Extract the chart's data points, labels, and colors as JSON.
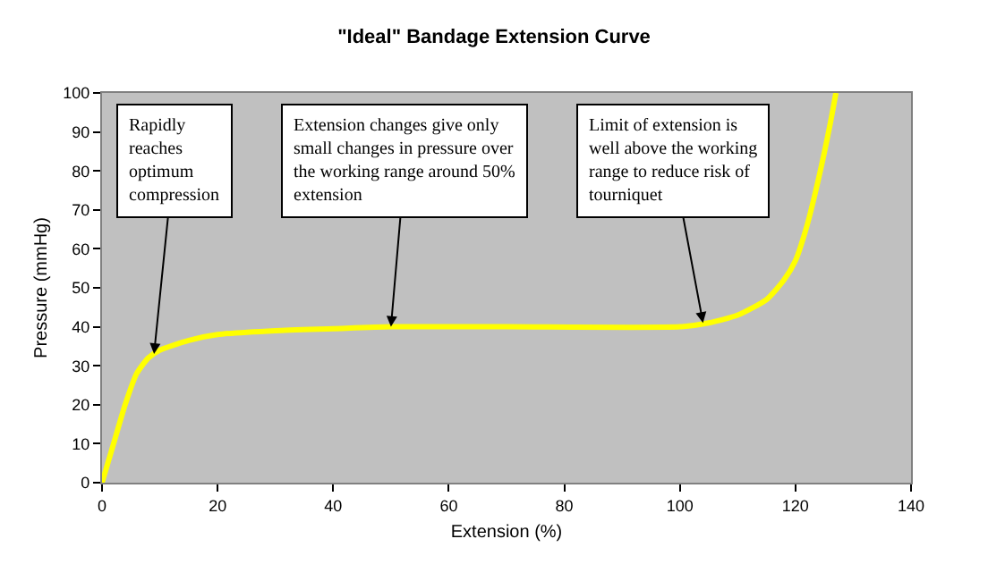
{
  "chart_data": {
    "type": "line",
    "title": "\"Ideal\" Bandage Extension Curve",
    "xlabel": "Extension (%)",
    "ylabel": "Pressure (mmHg)",
    "x": [
      0,
      2,
      4,
      6,
      8,
      10,
      15,
      20,
      30,
      40,
      50,
      70,
      100,
      105,
      110,
      115,
      118,
      120,
      122,
      124,
      126,
      127
    ],
    "series": [
      {
        "color": "#ffff00",
        "values": [
          0,
          10,
          20,
          28,
          32,
          34,
          36.5,
          38,
          39,
          39.5,
          40,
          40,
          40,
          41,
          43,
          47,
          52,
          57,
          66,
          78,
          92,
          100
        ]
      }
    ],
    "xlim": [
      0,
      140
    ],
    "xticks": [
      0,
      20,
      40,
      60,
      80,
      100,
      120,
      140
    ],
    "ylim": [
      0,
      100
    ],
    "yticks": [
      0,
      10,
      20,
      30,
      40,
      50,
      60,
      70,
      80,
      90,
      100
    ],
    "grid": false,
    "marker": "none",
    "line_style": "solid",
    "annotations": [
      {
        "text": "Rapidly reaches optimum compression",
        "x": 9,
        "y": 33
      },
      {
        "text": "Extension changes give only small changes in pressure over the working range around 50% extension",
        "x": 50,
        "y": 40
      },
      {
        "text": "Limit of extension is well above the working range to reduce risk of tourniquet",
        "x": 104,
        "y": 41
      }
    ]
  }
}
